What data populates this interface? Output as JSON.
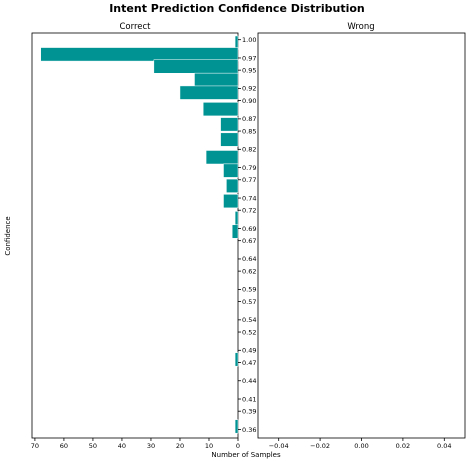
{
  "chart_data": {
    "type": "bar",
    "title": "Intent Prediction Confidence Distribution",
    "xlabel": "Number of Samples",
    "ylabel": "Confidence",
    "bar_color": "#009393",
    "y_ticks": [
      "1.00",
      "0.97",
      "0.95",
      "0.92",
      "0.90",
      "0.87",
      "0.85",
      "0.82",
      "0.79",
      "0.77",
      "0.74",
      "0.72",
      "0.69",
      "0.67",
      "0.64",
      "0.62",
      "0.59",
      "0.57",
      "0.54",
      "0.52",
      "0.49",
      "0.47",
      "0.44",
      "0.41",
      "0.39",
      "0.36"
    ],
    "ylim": [
      0.346,
      1.011
    ],
    "panels": [
      {
        "name": "Correct",
        "x_direction": "reversed",
        "xlim": [
          71,
          0
        ],
        "x_ticks": [
          "70",
          "60",
          "50",
          "40",
          "30",
          "20",
          "10",
          "0"
        ],
        "x_tick_values": [
          70,
          60,
          50,
          40,
          30,
          20,
          10,
          0
        ],
        "bins": [
          {
            "y": 0.995,
            "value": 1
          },
          {
            "y": 0.976,
            "value": 68
          },
          {
            "y": 0.956,
            "value": 29
          },
          {
            "y": 0.934,
            "value": 15
          },
          {
            "y": 0.913,
            "value": 20
          },
          {
            "y": 0.886,
            "value": 12
          },
          {
            "y": 0.861,
            "value": 6
          },
          {
            "y": 0.836,
            "value": 6
          },
          {
            "y": 0.807,
            "value": 11
          },
          {
            "y": 0.785,
            "value": 5
          },
          {
            "y": 0.76,
            "value": 4
          },
          {
            "y": 0.735,
            "value": 5
          },
          {
            "y": 0.707,
            "value": 1
          },
          {
            "y": 0.685,
            "value": 2
          },
          {
            "y": 0.475,
            "value": 1
          },
          {
            "y": 0.365,
            "value": 1
          }
        ]
      },
      {
        "name": "Wrong",
        "xlim": [
          -0.05,
          0.05
        ],
        "x_ticks": [
          "−0.04",
          "−0.02",
          "0.00",
          "0.02",
          "0.04"
        ],
        "x_tick_values": [
          -0.04,
          -0.02,
          0.0,
          0.02,
          0.04
        ],
        "bins": []
      }
    ]
  }
}
